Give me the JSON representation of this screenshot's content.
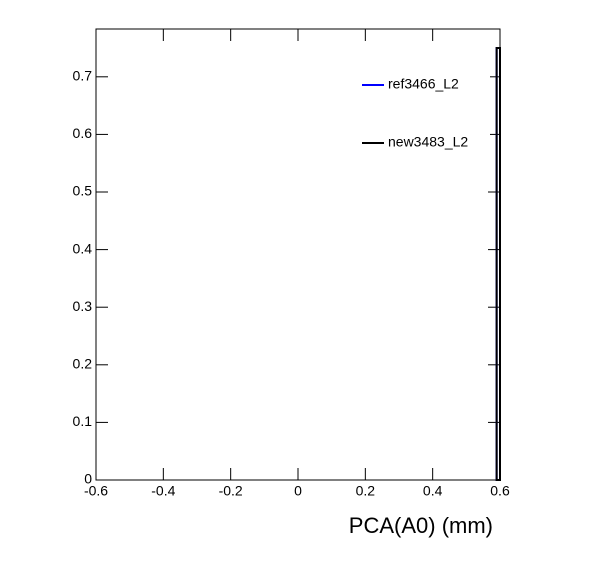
{
  "chart_data": {
    "type": "histogram",
    "x_label": "PCA(A0) (mm)",
    "bins": [
      -0.6,
      0.59,
      0.6
    ],
    "series": [
      {
        "name": "ref3466_L2",
        "color": "#0000ff",
        "values": [
          0,
          0.75
        ]
      },
      {
        "name": "new3483_L2",
        "color": "#000000",
        "values": [
          0,
          0.75
        ]
      }
    ],
    "xlim": [
      -0.6,
      0.6
    ],
    "xticks": [
      -0.6,
      -0.4,
      -0.2,
      0,
      0.2,
      0.4,
      0.6
    ],
    "ylim": [
      0,
      0.783
    ],
    "yticks": [
      0,
      0.1,
      0.2,
      0.3,
      0.4,
      0.5,
      0.6,
      0.7
    ],
    "legend": "top-right"
  }
}
